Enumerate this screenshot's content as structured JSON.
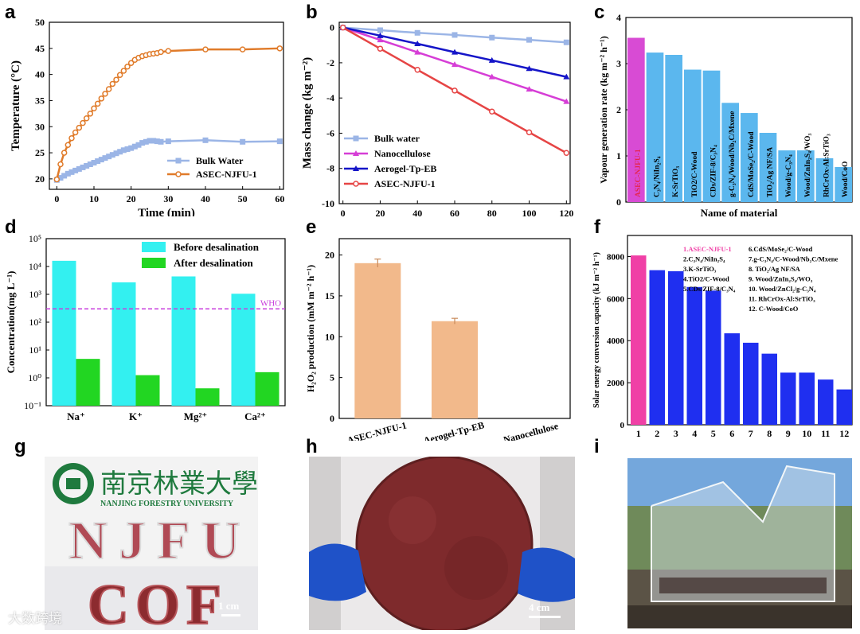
{
  "panels": {
    "a": "a",
    "b": "b",
    "c": "c",
    "d": "d",
    "e": "e",
    "f": "f",
    "g": "g",
    "h": "h",
    "i": "i"
  },
  "chart_data": [
    {
      "id": "a",
      "type": "line",
      "xlabel": "Time (min)",
      "ylabel": "Temperature (°C)",
      "xlim": [
        -2,
        61
      ],
      "ylim": [
        18,
        50
      ],
      "xticks": [
        0,
        10,
        20,
        30,
        40,
        50,
        60
      ],
      "yticks": [
        20,
        25,
        30,
        35,
        40,
        45,
        50
      ],
      "legend_position": "bottom-right",
      "series": [
        {
          "name": "Bulk Water",
          "color": "#9bb5e6",
          "marker": "square",
          "x": [
            0,
            1,
            2,
            3,
            4,
            5,
            6,
            7,
            8,
            9,
            10,
            11,
            12,
            13,
            14,
            15,
            16,
            17,
            18,
            19,
            20,
            21,
            22,
            23,
            24,
            25,
            26,
            27,
            28,
            30,
            40,
            50,
            60
          ],
          "y": [
            19.8,
            20.2,
            20.6,
            21.0,
            21.3,
            21.6,
            21.9,
            22.2,
            22.5,
            22.8,
            23.1,
            23.4,
            23.7,
            24.0,
            24.3,
            24.6,
            24.9,
            25.2,
            25.5,
            25.7,
            25.9,
            26.2,
            26.5,
            26.9,
            27.1,
            27.3,
            27.3,
            27.2,
            27.1,
            27.2,
            27.4,
            27.1,
            27.2
          ]
        },
        {
          "name": "ASEC-NJFU-1",
          "color": "#e07b2a",
          "marker": "circle",
          "x": [
            0,
            1,
            2,
            3,
            4,
            5,
            6,
            7,
            8,
            9,
            10,
            11,
            12,
            13,
            14,
            15,
            16,
            17,
            18,
            19,
            20,
            21,
            22,
            23,
            24,
            25,
            26,
            27,
            28,
            30,
            40,
            50,
            60
          ],
          "y": [
            19.9,
            22.8,
            25.0,
            26.5,
            27.8,
            28.9,
            29.8,
            30.7,
            31.6,
            32.5,
            33.5,
            34.4,
            35.4,
            36.3,
            37.2,
            38.2,
            39.0,
            39.9,
            40.7,
            41.5,
            42.2,
            42.8,
            43.2,
            43.5,
            43.7,
            43.9,
            44.0,
            44.1,
            44.3,
            44.5,
            44.8,
            44.8,
            45.0
          ]
        }
      ]
    },
    {
      "id": "b",
      "type": "line",
      "xlabel": "Time (min)",
      "ylabel": "Mass change (kg m⁻²)",
      "xlim": [
        -2,
        122
      ],
      "ylim": [
        -10,
        0.3
      ],
      "xticks": [
        0,
        20,
        40,
        60,
        80,
        100,
        120
      ],
      "yticks": [
        0,
        -2,
        -4,
        -6,
        -8,
        -10
      ],
      "legend_position": "bottom-left",
      "series": [
        {
          "name": "Bulk water",
          "color": "#9bb5e6",
          "marker": "square",
          "x": [
            0,
            20,
            40,
            60,
            80,
            100,
            120
          ],
          "y": [
            0,
            -0.15,
            -0.3,
            -0.42,
            -0.57,
            -0.7,
            -0.84
          ]
        },
        {
          "name": "Nanocellulose",
          "color": "#d63ed6",
          "marker": "triangle",
          "x": [
            0,
            20,
            40,
            60,
            80,
            100,
            120
          ],
          "y": [
            0,
            -0.7,
            -1.4,
            -2.1,
            -2.8,
            -3.5,
            -4.2
          ]
        },
        {
          "name": "Aerogel-Tp-EB",
          "color": "#1515c8",
          "marker": "triangle",
          "x": [
            0,
            20,
            40,
            60,
            80,
            100,
            120
          ],
          "y": [
            0,
            -0.46,
            -0.92,
            -1.4,
            -1.86,
            -2.33,
            -2.8
          ]
        },
        {
          "name": "ASEC-NJFU-1",
          "color": "#e64545",
          "marker": "circle",
          "x": [
            0,
            20,
            40,
            60,
            80,
            100,
            120
          ],
          "y": [
            0,
            -1.2,
            -2.4,
            -3.58,
            -4.77,
            -5.95,
            -7.12
          ]
        }
      ]
    },
    {
      "id": "c",
      "type": "bar",
      "xlabel": "Name of material",
      "ylabel": "Vapour generation rate (kg m⁻² h⁻¹)",
      "ylim": [
        0,
        4
      ],
      "yticks": [
        0,
        1,
        2,
        3,
        4
      ],
      "categories": [
        "ASEC-NJFU-1",
        "C₃N₄/NiIn₂S₄",
        "K-SrTiO₃",
        "TiO2/C-Wood",
        "CDs/ZIF-8/C₃N₄",
        "g-C₃N₄/Wood/Nb₂C/Mxene",
        "CdS/MoSe₂/C-Wood",
        "TiO₂/Ag NF/SA",
        "Wood/g-C₃N₄",
        "Wood/ZnIn₂S₄/WO₃",
        "RhCrOx-Al:SrTiO₃",
        "Wood/CoO"
      ],
      "values": [
        3.56,
        3.24,
        3.19,
        2.87,
        2.85,
        2.15,
        1.93,
        1.5,
        1.12,
        1.12,
        0.95,
        0.76
      ],
      "highlight_color": "#d84bd4",
      "bar_color": "#5bb7ee",
      "highlight_label_color": "#e5254f"
    },
    {
      "id": "d",
      "type": "bar",
      "xlabel": "",
      "ylabel": "Concentration(mg L⁻¹)",
      "yscale": "log",
      "ylim": [
        0.1,
        100000
      ],
      "yticks": [
        0.1,
        1,
        10,
        100,
        1000,
        10000,
        100000
      ],
      "ytick_labels": [
        "10⁻¹",
        "10⁰",
        "10¹",
        "10²",
        "10³",
        "10⁴",
        "10⁵"
      ],
      "categories": [
        "Na⁺",
        "K⁺",
        "Mg²⁺",
        "Ca²⁺"
      ],
      "series": [
        {
          "name": "Before desalination",
          "color": "#33f0f0",
          "values": [
            16000,
            2700,
            4400,
            1050
          ]
        },
        {
          "name": "After desalination",
          "color": "#22d622",
          "values": [
            4.8,
            1.25,
            0.42,
            1.6
          ]
        }
      ],
      "reference_line": {
        "label": "WHO",
        "value": 300,
        "color": "#c83cdc"
      },
      "legend_position": "top-right"
    },
    {
      "id": "e",
      "type": "bar",
      "xlabel": "",
      "ylabel": "H₂O₂ production (mM m⁻² h⁻¹)",
      "ylim": [
        0,
        22
      ],
      "yticks": [
        0,
        5,
        10,
        15,
        20
      ],
      "categories": [
        "ASEC-NJFU-1",
        "Aerogel-Tp-EB",
        "Nanocellulose"
      ],
      "values": [
        19.0,
        11.9,
        0
      ],
      "errors": [
        0.5,
        0.35,
        0
      ],
      "bar_color": "#f2b98b"
    },
    {
      "id": "f",
      "type": "bar",
      "xlabel": "",
      "ylabel": "Solar energy conversion capacity (kJ m⁻² h⁻¹)",
      "ylim": [
        0,
        9000
      ],
      "yticks": [
        0,
        2000,
        4000,
        6000,
        8000
      ],
      "categories": [
        "1",
        "2",
        "3",
        "4",
        "5",
        "6",
        "7",
        "8",
        "9",
        "10",
        "11",
        "12"
      ],
      "values": [
        8050,
        7350,
        7300,
        6550,
        6380,
        4350,
        3900,
        3380,
        2480,
        2480,
        2150,
        1680
      ],
      "highlight_color": "#f040a6",
      "bar_color": "#1f2ff0",
      "legend_col1": [
        "1.ASEC-NJFU-1",
        "2.C₃N₄/NiIn₂S₄",
        "3.K-SrTiO₃",
        "4.TiO2/C-Wood",
        "5.CDs/ZIF-8/C₃N₄"
      ],
      "legend_col2": [
        "6.CdS/MoSe₂/C-Wood",
        "7.g-C₃N₄/C-Wood/Nb₂C/Mxene",
        "8. TiO₂/Ag NF/SA",
        "9. Wood/ZnIn₂S₄/WO₃",
        "10. Wood/ZnCl₂/g-C₃N₄",
        "11. RhCrOx-Al:SrTiO₃",
        "12. C-Wood/CoO"
      ]
    }
  ],
  "photos": {
    "g": {
      "university_chinese": "南京林業大學",
      "university_english": "NANJING FORESTRY UNIVERSITY",
      "letters_top": "NJFU",
      "letters_bottom": "COF",
      "scale": "1 cm"
    },
    "h": {
      "scale": "4 cm"
    },
    "i": {}
  },
  "watermark": "大数跨境"
}
